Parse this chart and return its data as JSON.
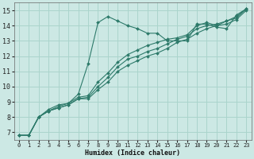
{
  "xlabel": "Humidex (Indice chaleur)",
  "bg_color": "#cce8e4",
  "grid_color": "#aad4cc",
  "line_color": "#2d7a6a",
  "xlim": [
    -0.5,
    23.5
  ],
  "ylim": [
    6.5,
    15.5
  ],
  "xticks": [
    0,
    1,
    2,
    3,
    4,
    5,
    6,
    7,
    8,
    9,
    10,
    11,
    12,
    13,
    14,
    15,
    16,
    17,
    18,
    19,
    20,
    21,
    22,
    23
  ],
  "yticks": [
    7,
    8,
    9,
    10,
    11,
    12,
    13,
    14,
    15
  ],
  "series": [
    {
      "x": [
        0,
        1,
        2,
        3,
        4,
        5,
        6,
        7,
        8,
        9,
        10,
        11,
        12,
        13,
        14,
        15,
        16,
        17,
        18,
        19,
        20,
        21,
        22,
        23
      ],
      "y": [
        6.8,
        6.8,
        8.0,
        8.5,
        8.8,
        8.9,
        9.5,
        11.5,
        14.2,
        14.6,
        14.3,
        14.0,
        13.8,
        13.5,
        13.5,
        13.0,
        13.0,
        13.0,
        14.1,
        14.1,
        13.9,
        13.8,
        14.7,
        15.1
      ]
    },
    {
      "x": [
        0,
        1,
        2,
        3,
        4,
        5,
        6,
        7,
        8,
        9,
        10,
        11,
        12,
        13,
        14,
        15,
        16,
        17,
        18,
        19,
        20,
        21,
        22,
        23
      ],
      "y": [
        6.8,
        6.8,
        8.0,
        8.4,
        8.6,
        8.8,
        9.2,
        9.2,
        9.8,
        10.3,
        11.0,
        11.4,
        11.7,
        12.0,
        12.2,
        12.5,
        12.9,
        13.1,
        13.5,
        13.8,
        14.0,
        14.1,
        14.4,
        15.0
      ]
    },
    {
      "x": [
        0,
        1,
        2,
        3,
        4,
        5,
        6,
        7,
        8,
        9,
        10,
        11,
        12,
        13,
        14,
        15,
        16,
        17,
        18,
        19,
        20,
        21,
        22,
        23
      ],
      "y": [
        6.8,
        6.8,
        8.0,
        8.4,
        8.6,
        8.8,
        9.2,
        9.3,
        10.0,
        10.6,
        11.3,
        11.8,
        12.0,
        12.3,
        12.5,
        12.8,
        13.1,
        13.3,
        13.8,
        14.0,
        14.1,
        14.3,
        14.6,
        15.1
      ]
    },
    {
      "x": [
        0,
        1,
        2,
        3,
        4,
        5,
        6,
        7,
        8,
        9,
        10,
        11,
        12,
        13,
        14,
        15,
        16,
        17,
        18,
        19,
        20,
        21,
        22,
        23
      ],
      "y": [
        6.8,
        6.8,
        8.0,
        8.4,
        8.7,
        8.9,
        9.3,
        9.4,
        10.3,
        10.9,
        11.6,
        12.1,
        12.4,
        12.7,
        12.9,
        13.1,
        13.2,
        13.4,
        14.0,
        14.2,
        14.0,
        14.3,
        14.5,
        15.1
      ]
    }
  ]
}
